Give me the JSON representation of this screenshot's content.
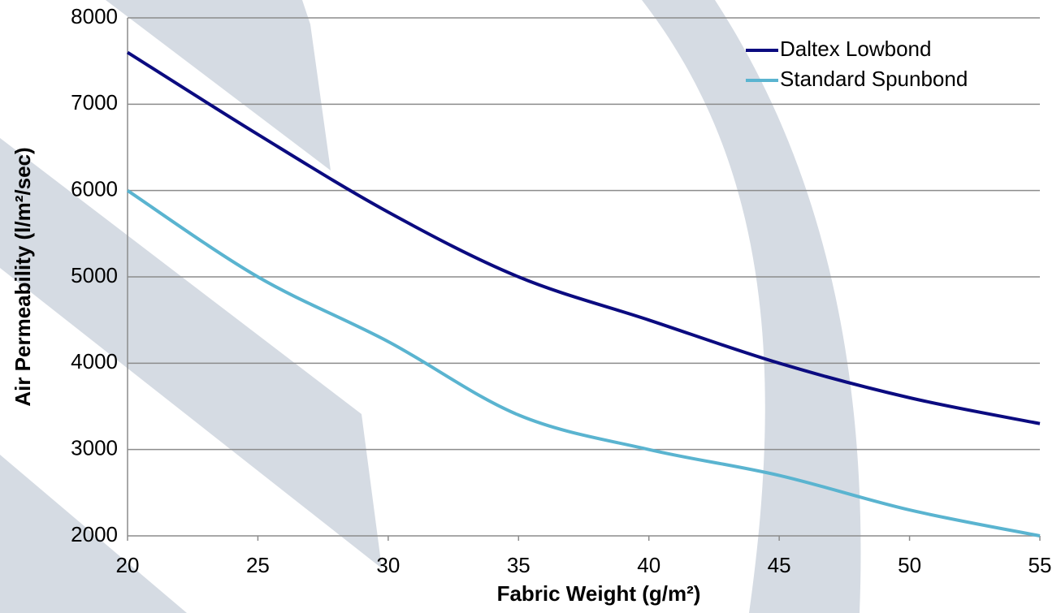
{
  "chart_data": {
    "type": "line",
    "x_label": "Fabric Weight (g/m²)",
    "y_label": "Air Permeability (l/m²/sec)",
    "x": [
      20,
      25,
      30,
      35,
      40,
      45,
      50,
      55
    ],
    "series": [
      {
        "name": "Daltex Lowbond",
        "color": "#0b0b80",
        "values": [
          7600,
          6650,
          5750,
          5000,
          4500,
          4000,
          3600,
          3300
        ]
      },
      {
        "name": "Standard Spunbond",
        "color": "#5ab4d0",
        "values": [
          6000,
          5000,
          4250,
          3400,
          3000,
          2700,
          2300,
          2000
        ]
      }
    ],
    "xlim": [
      20,
      55
    ],
    "xticks": [
      20,
      25,
      30,
      35,
      40,
      45,
      50,
      55
    ],
    "ylim": [
      2000,
      8000
    ],
    "yticks": [
      2000,
      3000,
      4000,
      5000,
      6000,
      7000,
      8000
    ],
    "grid": true,
    "legend": "upper right"
  }
}
